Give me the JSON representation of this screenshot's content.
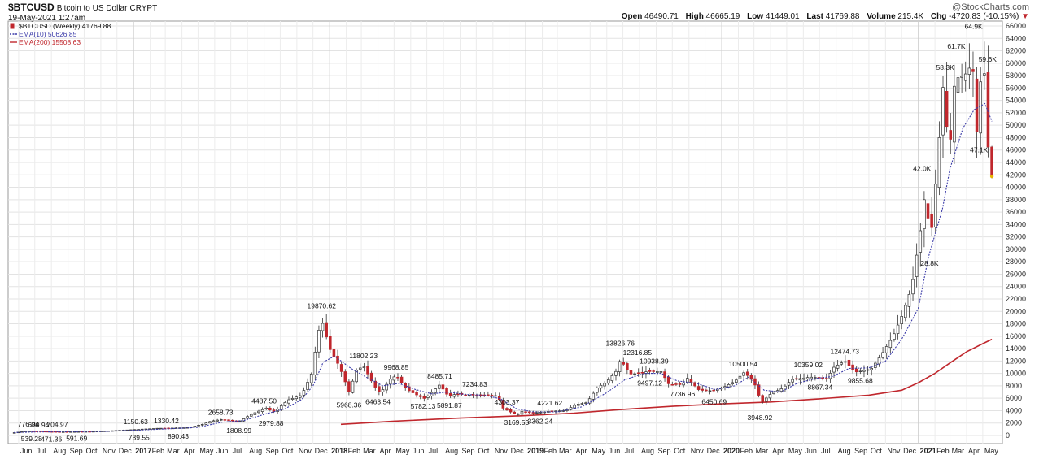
{
  "header": {
    "symbol": "$BTCUSD",
    "name": "Bitcoin to US Dollar",
    "exchange": "CRYPT",
    "date": "19-May-2021 1:27am",
    "brand": "@StockCharts.com",
    "open_label": "Open",
    "open": "46490.71",
    "high_label": "High",
    "high": "46665.19",
    "low_label": "Low",
    "low": "41449.01",
    "last_label": "Last",
    "last": "41769.88",
    "volume_label": "Volume",
    "volume": "215.4K",
    "chg_label": "Chg",
    "chg": "-4720.83 (-10.15%)",
    "down_marker": "▼"
  },
  "colors": {
    "up": "#ffffff",
    "down": "#c0272d",
    "wick": "#333333",
    "ema10": "#3a3aa8",
    "ema200": "#c0272d",
    "grid": "#e3e3e3",
    "last": "#e8b400"
  },
  "chart_data": {
    "type": "candlestick",
    "period": "Weekly",
    "legend": [
      {
        "label": "$BTCUSD (Weekly) 41769.88",
        "style": "candle"
      },
      {
        "label": "EMA(10) 50626.85",
        "style": "dotted",
        "color": "#3a3aa8"
      },
      {
        "label": "EMA(200) 15508.63",
        "style": "solid",
        "color": "#c0272d"
      }
    ],
    "ylim": [
      0,
      66000
    ],
    "y_axis_position": "right",
    "y_ticks": [
      0,
      2000,
      4000,
      6000,
      8000,
      10000,
      12000,
      14000,
      16000,
      18000,
      20000,
      22000,
      24000,
      26000,
      28000,
      30000,
      32000,
      34000,
      36000,
      38000,
      40000,
      42000,
      44000,
      46000,
      48000,
      50000,
      52000,
      54000,
      56000,
      58000,
      60000,
      62000,
      64000,
      66000
    ],
    "x_ticks": [
      {
        "label": "Jun",
        "d": "2016-06-01"
      },
      {
        "label": "Jul",
        "d": "2016-07-01"
      },
      {
        "label": "Aug",
        "d": "2016-08-01"
      },
      {
        "label": "Sep",
        "d": "2016-09-01"
      },
      {
        "label": "Oct",
        "d": "2016-10-01"
      },
      {
        "label": "Nov",
        "d": "2016-11-01"
      },
      {
        "label": "Dec",
        "d": "2016-12-01"
      },
      {
        "label": "2017",
        "d": "2017-01-01",
        "bold": true
      },
      {
        "label": "Feb",
        "d": "2017-02-01"
      },
      {
        "label": "Mar",
        "d": "2017-03-01"
      },
      {
        "label": "Apr",
        "d": "2017-04-01"
      },
      {
        "label": "May",
        "d": "2017-05-01"
      },
      {
        "label": "Jun",
        "d": "2017-06-01"
      },
      {
        "label": "Jul",
        "d": "2017-07-01"
      },
      {
        "label": "Aug",
        "d": "2017-08-01"
      },
      {
        "label": "Sep",
        "d": "2017-09-01"
      },
      {
        "label": "Oct",
        "d": "2017-10-01"
      },
      {
        "label": "Nov",
        "d": "2017-11-01"
      },
      {
        "label": "Dec",
        "d": "2017-12-01"
      },
      {
        "label": "2018",
        "d": "2018-01-01",
        "bold": true
      },
      {
        "label": "Feb",
        "d": "2018-02-01"
      },
      {
        "label": "Mar",
        "d": "2018-03-01"
      },
      {
        "label": "Apr",
        "d": "2018-04-01"
      },
      {
        "label": "May",
        "d": "2018-05-01"
      },
      {
        "label": "Jun",
        "d": "2018-06-01"
      },
      {
        "label": "Jul",
        "d": "2018-07-01"
      },
      {
        "label": "Aug",
        "d": "2018-08-01"
      },
      {
        "label": "Sep",
        "d": "2018-09-01"
      },
      {
        "label": "Oct",
        "d": "2018-10-01"
      },
      {
        "label": "Nov",
        "d": "2018-11-01"
      },
      {
        "label": "Dec",
        "d": "2018-12-01"
      },
      {
        "label": "2019",
        "d": "2019-01-01",
        "bold": true
      },
      {
        "label": "Feb",
        "d": "2019-02-01"
      },
      {
        "label": "Mar",
        "d": "2019-03-01"
      },
      {
        "label": "Apr",
        "d": "2019-04-01"
      },
      {
        "label": "May",
        "d": "2019-05-01"
      },
      {
        "label": "Jun",
        "d": "2019-06-01"
      },
      {
        "label": "Jul",
        "d": "2019-07-01"
      },
      {
        "label": "Aug",
        "d": "2019-08-01"
      },
      {
        "label": "Sep",
        "d": "2019-09-01"
      },
      {
        "label": "Oct",
        "d": "2019-10-01"
      },
      {
        "label": "Nov",
        "d": "2019-11-01"
      },
      {
        "label": "Dec",
        "d": "2019-12-01"
      },
      {
        "label": "2020",
        "d": "2020-01-01",
        "bold": true
      },
      {
        "label": "Feb",
        "d": "2020-02-01"
      },
      {
        "label": "Mar",
        "d": "2020-03-01"
      },
      {
        "label": "Apr",
        "d": "2020-04-01"
      },
      {
        "label": "May",
        "d": "2020-05-01"
      },
      {
        "label": "Jun",
        "d": "2020-06-01"
      },
      {
        "label": "Jul",
        "d": "2020-07-01"
      },
      {
        "label": "Aug",
        "d": "2020-08-01"
      },
      {
        "label": "Sep",
        "d": "2020-09-01"
      },
      {
        "label": "Oct",
        "d": "2020-10-01"
      },
      {
        "label": "Nov",
        "d": "2020-11-01"
      },
      {
        "label": "Dec",
        "d": "2020-12-01"
      },
      {
        "label": "2021",
        "d": "2021-01-01",
        "bold": true
      },
      {
        "label": "Feb",
        "d": "2021-02-01"
      },
      {
        "label": "Mar",
        "d": "2021-03-01"
      },
      {
        "label": "Apr",
        "d": "2021-04-01"
      },
      {
        "label": "May",
        "d": "2021-05-01"
      }
    ],
    "x_range": [
      "2016-05-20",
      "2021-05-30"
    ],
    "close_path": [
      [
        "2016-05-23",
        450
      ],
      [
        "2016-06-15",
        700
      ],
      [
        "2016-07-15",
        660
      ],
      [
        "2016-08-15",
        580
      ],
      [
        "2016-09-15",
        610
      ],
      [
        "2016-10-15",
        640
      ],
      [
        "2016-11-15",
        740
      ],
      [
        "2016-12-15",
        860
      ],
      [
        "2017-01-05",
        960
      ],
      [
        "2017-02-15",
        1150
      ],
      [
        "2017-03-10",
        1180
      ],
      [
        "2017-04-10",
        1250
      ],
      [
        "2017-05-10",
        1800
      ],
      [
        "2017-05-25",
        2300
      ],
      [
        "2017-06-15",
        2600
      ],
      [
        "2017-07-15",
        2200
      ],
      [
        "2017-08-10",
        3500
      ],
      [
        "2017-09-05",
        4400
      ],
      [
        "2017-09-20",
        3800
      ],
      [
        "2017-10-15",
        5700
      ],
      [
        "2017-11-10",
        6500
      ],
      [
        "2017-11-28",
        9900
      ],
      [
        "2017-12-16",
        19000
      ],
      [
        "2018-01-01",
        14000
      ],
      [
        "2018-01-20",
        11000
      ],
      [
        "2018-02-06",
        7000
      ],
      [
        "2018-02-20",
        10500
      ],
      [
        "2018-03-05",
        11200
      ],
      [
        "2018-03-25",
        8000
      ],
      [
        "2018-04-05",
        6800
      ],
      [
        "2018-04-25",
        9200
      ],
      [
        "2018-05-05",
        9600
      ],
      [
        "2018-05-25",
        7400
      ],
      [
        "2018-06-15",
        6400
      ],
      [
        "2018-06-28",
        5900
      ],
      [
        "2018-07-25",
        8200
      ],
      [
        "2018-08-10",
        6300
      ],
      [
        "2018-08-25",
        6700
      ],
      [
        "2018-09-15",
        6500
      ],
      [
        "2018-10-15",
        6500
      ],
      [
        "2018-11-10",
        6400
      ],
      [
        "2018-11-20",
        4400
      ],
      [
        "2018-12-15",
        3300
      ],
      [
        "2018-12-25",
        3900
      ],
      [
        "2019-01-15",
        3600
      ],
      [
        "2019-02-15",
        3900
      ],
      [
        "2019-03-15",
        4000
      ],
      [
        "2019-04-05",
        5000
      ],
      [
        "2019-04-25",
        5300
      ],
      [
        "2019-05-15",
        7800
      ],
      [
        "2019-05-30",
        8500
      ],
      [
        "2019-06-20",
        10500
      ],
      [
        "2019-06-26",
        12200
      ],
      [
        "2019-07-15",
        9900
      ],
      [
        "2019-07-31",
        10000
      ],
      [
        "2019-08-15",
        10300
      ],
      [
        "2019-09-10",
        10300
      ],
      [
        "2019-09-25",
        8200
      ],
      [
        "2019-10-20",
        8200
      ],
      [
        "2019-10-28",
        9300
      ],
      [
        "2019-11-20",
        7300
      ],
      [
        "2019-12-15",
        7200
      ],
      [
        "2020-01-05",
        7800
      ],
      [
        "2020-01-25",
        8700
      ],
      [
        "2020-02-12",
        10200
      ],
      [
        "2020-03-01",
        8600
      ],
      [
        "2020-03-15",
        5300
      ],
      [
        "2020-04-01",
        6700
      ],
      [
        "2020-04-25",
        7700
      ],
      [
        "2020-05-10",
        9000
      ],
      [
        "2020-06-15",
        9400
      ],
      [
        "2020-07-15",
        9200
      ],
      [
        "2020-07-28",
        11000
      ],
      [
        "2020-08-17",
        12000
      ],
      [
        "2020-09-05",
        10200
      ],
      [
        "2020-10-05",
        10700
      ],
      [
        "2020-10-25",
        13100
      ],
      [
        "2020-11-15",
        16000
      ],
      [
        "2020-12-01",
        19200
      ],
      [
        "2020-12-20",
        24000
      ],
      [
        "2021-01-05",
        33000
      ],
      [
        "2021-01-12",
        38000
      ],
      [
        "2021-01-25",
        32500
      ],
      [
        "2021-02-08",
        46500
      ],
      [
        "2021-02-15",
        57000
      ],
      [
        "2021-02-28",
        45300
      ],
      [
        "2021-03-10",
        57500
      ],
      [
        "2021-03-28",
        58000
      ],
      [
        "2021-04-12",
        60000
      ],
      [
        "2021-04-20",
        49000
      ],
      [
        "2021-04-27",
        57000
      ],
      [
        "2021-05-05",
        58500
      ],
      [
        "2021-05-11",
        46500
      ],
      [
        "2021-05-18",
        41769.88
      ]
    ],
    "ema10": [
      [
        "2016-05-23",
        470
      ],
      [
        "2016-07-01",
        560
      ],
      [
        "2016-09-01",
        600
      ],
      [
        "2016-11-01",
        640
      ],
      [
        "2017-01-01",
        820
      ],
      [
        "2017-03-01",
        1050
      ],
      [
        "2017-05-01",
        1300
      ],
      [
        "2017-06-15",
        2150
      ],
      [
        "2017-07-25",
        2400
      ],
      [
        "2017-09-05",
        3500
      ],
      [
        "2017-10-10",
        4300
      ],
      [
        "2017-11-10",
        5800
      ],
      [
        "2017-12-01",
        8000
      ],
      [
        "2017-12-20",
        11800
      ],
      [
        "2018-01-10",
        12800
      ],
      [
        "2018-02-10",
        10800
      ],
      [
        "2018-03-10",
        9400
      ],
      [
        "2018-04-10",
        8000
      ],
      [
        "2018-05-10",
        8400
      ],
      [
        "2018-06-10",
        7400
      ],
      [
        "2018-07-10",
        6700
      ],
      [
        "2018-08-10",
        7000
      ],
      [
        "2018-09-10",
        6600
      ],
      [
        "2018-10-15",
        6500
      ],
      [
        "2018-11-15",
        5900
      ],
      [
        "2018-12-15",
        4300
      ],
      [
        "2019-01-15",
        3800
      ],
      [
        "2019-03-01",
        3800
      ],
      [
        "2019-04-15",
        4600
      ],
      [
        "2019-05-30",
        6800
      ],
      [
        "2019-07-05",
        9000
      ],
      [
        "2019-08-10",
        10000
      ],
      [
        "2019-09-10",
        10000
      ],
      [
        "2019-10-10",
        8800
      ],
      [
        "2019-11-15",
        8400
      ],
      [
        "2019-12-20",
        7400
      ],
      [
        "2020-01-25",
        8000
      ],
      [
        "2020-02-20",
        9400
      ],
      [
        "2020-03-20",
        7300
      ],
      [
        "2020-04-20",
        7000
      ],
      [
        "2020-05-20",
        8400
      ],
      [
        "2020-06-25",
        9200
      ],
      [
        "2020-07-25",
        9500
      ],
      [
        "2020-08-25",
        10800
      ],
      [
        "2020-10-01",
        10900
      ],
      [
        "2020-11-01",
        12000
      ],
      [
        "2020-12-01",
        15500
      ],
      [
        "2021-01-01",
        20500
      ],
      [
        "2021-01-20",
        28800
      ],
      [
        "2021-02-15",
        36500
      ],
      [
        "2021-03-01",
        43000
      ],
      [
        "2021-03-25",
        49500
      ],
      [
        "2021-04-15",
        52500
      ],
      [
        "2021-05-05",
        53500
      ],
      [
        "2021-05-18",
        50626.85
      ]
    ],
    "ema200": [
      [
        "2018-01-22",
        1800
      ],
      [
        "2018-05-01",
        2300
      ],
      [
        "2018-09-01",
        2800
      ],
      [
        "2019-01-01",
        3200
      ],
      [
        "2019-04-01",
        3600
      ],
      [
        "2019-07-01",
        4200
      ],
      [
        "2019-10-01",
        4700
      ],
      [
        "2020-01-01",
        5100
      ],
      [
        "2020-04-01",
        5400
      ],
      [
        "2020-07-01",
        5900
      ],
      [
        "2020-10-01",
        6500
      ],
      [
        "2020-12-01",
        7300
      ],
      [
        "2021-01-01",
        8500
      ],
      [
        "2021-02-01",
        10000
      ],
      [
        "2021-03-01",
        11700
      ],
      [
        "2021-04-01",
        13500
      ],
      [
        "2021-05-01",
        14800
      ],
      [
        "2021-05-18",
        15508.63
      ]
    ],
    "annotations": [
      {
        "text": "776.04",
        "d": "2016-06-19",
        "v": 776.04,
        "pos": "above"
      },
      {
        "text": "630.94",
        "d": "2016-07-08",
        "v": 630.94,
        "pos": "above"
      },
      {
        "text": "704.97",
        "d": "2016-08-12",
        "v": 704.97,
        "pos": "above"
      },
      {
        "text": "539.28",
        "d": "2016-06-25",
        "v": 539.28,
        "pos": "below"
      },
      {
        "text": "471.36",
        "d": "2016-08-01",
        "v": 471.36,
        "pos": "below"
      },
      {
        "text": "591.69",
        "d": "2016-09-17",
        "v": 591.69,
        "pos": "below"
      },
      {
        "text": "1150.63",
        "d": "2017-01-05",
        "v": 1150.63,
        "pos": "above"
      },
      {
        "text": "739.55",
        "d": "2017-01-11",
        "v": 739.55,
        "pos": "below"
      },
      {
        "text": "1330.42",
        "d": "2017-03-03",
        "v": 1330.42,
        "pos": "above"
      },
      {
        "text": "890.43",
        "d": "2017-03-25",
        "v": 890.43,
        "pos": "below"
      },
      {
        "text": "2658.73",
        "d": "2017-06-12",
        "v": 2658.73,
        "pos": "above"
      },
      {
        "text": "1808.99",
        "d": "2017-07-16",
        "v": 1808.99,
        "pos": "below"
      },
      {
        "text": "4487.50",
        "d": "2017-09-01",
        "v": 4487.5,
        "pos": "above"
      },
      {
        "text": "2979.88",
        "d": "2017-09-14",
        "v": 2979.88,
        "pos": "below"
      },
      {
        "text": "19870.62",
        "d": "2017-12-17",
        "v": 19870.62,
        "pos": "above"
      },
      {
        "text": "5968.36",
        "d": "2018-02-06",
        "v": 5968.36,
        "pos": "below"
      },
      {
        "text": "11802.23",
        "d": "2018-03-05",
        "v": 11802.23,
        "pos": "above"
      },
      {
        "text": "6463.54",
        "d": "2018-04-01",
        "v": 6463.54,
        "pos": "below"
      },
      {
        "text": "9968.85",
        "d": "2018-05-05",
        "v": 9968.85,
        "pos": "above"
      },
      {
        "text": "5782.13",
        "d": "2018-06-24",
        "v": 5782.13,
        "pos": "below"
      },
      {
        "text": "8485.71",
        "d": "2018-07-25",
        "v": 8485.71,
        "pos": "above"
      },
      {
        "text": "5891.87",
        "d": "2018-08-12",
        "v": 5891.87,
        "pos": "below"
      },
      {
        "text": "7234.83",
        "d": "2018-09-28",
        "v": 7234.83,
        "pos": "above"
      },
      {
        "text": "4303.37",
        "d": "2018-11-27",
        "v": 4303.37,
        "pos": "above"
      },
      {
        "text": "3169.53",
        "d": "2018-12-15",
        "v": 3169.53,
        "pos": "below"
      },
      {
        "text": "4221.62",
        "d": "2019-02-15",
        "v": 4221.62,
        "pos": "above"
      },
      {
        "text": "3362.24",
        "d": "2019-01-28",
        "v": 3362.24,
        "pos": "below"
      },
      {
        "text": "13826.76",
        "d": "2019-06-26",
        "v": 13826.76,
        "pos": "above"
      },
      {
        "text": "12316.85",
        "d": "2019-07-28",
        "v": 12316.85,
        "pos": "above"
      },
      {
        "text": "10938.39",
        "d": "2019-08-28",
        "v": 10938.39,
        "pos": "above"
      },
      {
        "text": "9497.12",
        "d": "2019-08-20",
        "v": 9497.12,
        "pos": "below"
      },
      {
        "text": "7736.96",
        "d": "2019-10-20",
        "v": 7736.96,
        "pos": "below"
      },
      {
        "text": "6450.69",
        "d": "2019-12-18",
        "v": 6450.69,
        "pos": "below"
      },
      {
        "text": "10500.54",
        "d": "2020-02-10",
        "v": 10500.54,
        "pos": "above"
      },
      {
        "text": "3948.92",
        "d": "2020-03-12",
        "v": 3948.92,
        "pos": "below"
      },
      {
        "text": "10359.02",
        "d": "2020-06-10",
        "v": 10359.02,
        "pos": "above"
      },
      {
        "text": "8867.34",
        "d": "2020-07-02",
        "v": 8867.34,
        "pos": "below"
      },
      {
        "text": "12474.73",
        "d": "2020-08-17",
        "v": 12474.73,
        "pos": "above"
      },
      {
        "text": "9855.68",
        "d": "2020-09-15",
        "v": 9855.68,
        "pos": "below"
      },
      {
        "text": "42.0K",
        "d": "2021-01-08",
        "v": 42000,
        "pos": "above"
      },
      {
        "text": "28.8K",
        "d": "2021-01-22",
        "v": 28800,
        "pos": "below"
      },
      {
        "text": "58.3K",
        "d": "2021-02-20",
        "v": 58300,
        "pos": "above"
      },
      {
        "text": "61.7K",
        "d": "2021-03-13",
        "v": 61700,
        "pos": "above"
      },
      {
        "text": "64.9K",
        "d": "2021-04-14",
        "v": 64900,
        "pos": "above"
      },
      {
        "text": "59.6K",
        "d": "2021-05-10",
        "v": 59600,
        "pos": "above"
      },
      {
        "text": "47.1K",
        "d": "2021-04-24",
        "v": 47100,
        "pos": "below"
      }
    ]
  }
}
